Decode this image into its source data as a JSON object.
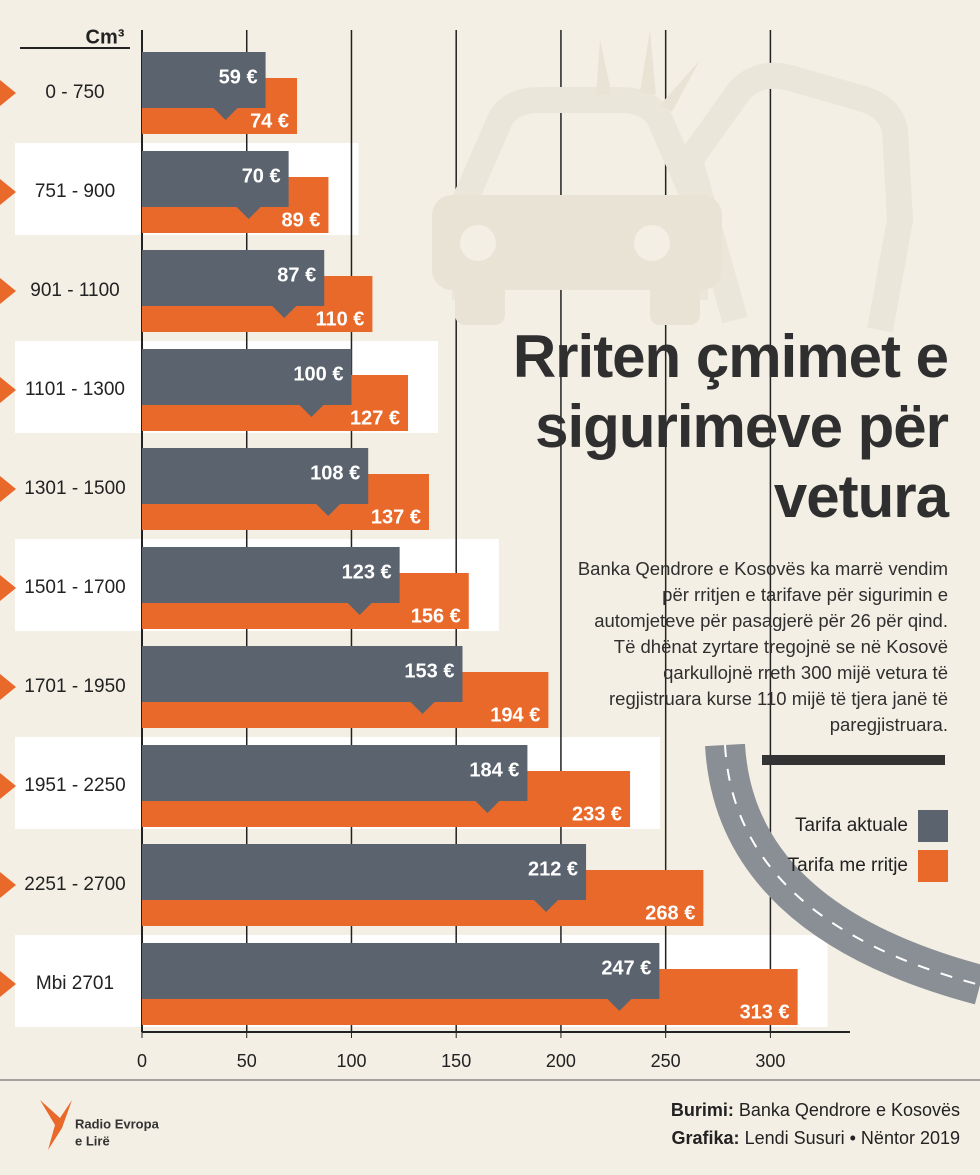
{
  "chart_data": {
    "type": "bar",
    "orientation": "horizontal",
    "title": "Rriten çmimet e sigurimeve për vetura",
    "description": "Banka Qendrore e Kosovës ka marrë vendim për rritjen e tarifave për sigurimin e automjeteve për pasagjerë për 26 për qind. Të dhënat zyrtare tregojnë se në Kosovë qarkullojnë rreth 300 mijë vetura të regjistruara kurse 110 mijë të tjera janë të paregjistruara.",
    "y_label": "Cm³",
    "categories": [
      "0 - 750",
      "751 - 900",
      "901 - 1100",
      "1101 - 1300",
      "1301 - 1500",
      "1501 - 1700",
      "1701 - 1950",
      "1951 - 2250",
      "2251 - 2700",
      "Mbi 2701"
    ],
    "series": [
      {
        "name": "Tarifa aktuale",
        "color": "#5b646e",
        "values": [
          59,
          70,
          87,
          100,
          108,
          123,
          153,
          184,
          212,
          247
        ],
        "value_labels": [
          "59 €",
          "70 €",
          "87 €",
          "100 €",
          "108 €",
          "123 €",
          "153 €",
          "184 €",
          "212 €",
          "247 €"
        ]
      },
      {
        "name": "Tarifa me rritje",
        "color": "#e8692a",
        "values": [
          74,
          89,
          110,
          127,
          137,
          156,
          194,
          233,
          268,
          313
        ],
        "value_labels": [
          "74 €",
          "89 €",
          "110 €",
          "127 €",
          "137 €",
          "156 €",
          "194 €",
          "233 €",
          "268 €",
          "313 €"
        ]
      }
    ],
    "xlim": [
      0,
      338
    ],
    "xticks": [
      0,
      50,
      100,
      150,
      200,
      250,
      300
    ],
    "grid": true
  },
  "footer": {
    "source_label": "Burimi:",
    "source": "Banka Qendrore e Kosovës",
    "credit_label": "Grafika:",
    "credit": "Lendi Susuri • Nëntor 2019",
    "logo_line1": "Radio Evropa",
    "logo_line2": "e Lirë"
  }
}
